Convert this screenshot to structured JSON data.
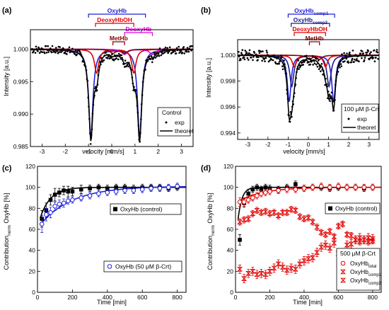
{
  "chart_data": [
    {
      "panel": "(a)",
      "type": "line",
      "xlabel": "velocity [mm/s]",
      "ylabel": "Intensity [a.u.]",
      "xlim": [
        -3.5,
        3.5
      ],
      "ylim": [
        0.985,
        1.003
      ],
      "xticks": [
        -3,
        -2,
        -1,
        0,
        1,
        2,
        3
      ],
      "yticks": [
        0.985,
        0.99,
        0.995,
        1.0
      ],
      "ytick_labels": [
        "0.985",
        "0.990",
        "0.995",
        "1.000"
      ],
      "brackets": [
        {
          "label": "OxyHb",
          "color": "#1f1fd6",
          "x1": -1.0,
          "x2": 1.45
        },
        {
          "label": "DeoxyHbOH",
          "color": "#e00000",
          "x1": -0.7,
          "x2": 0.95
        },
        {
          "label": "DeoxyHb",
          "color": "#e000e0",
          "x1": 0.55,
          "x2": 1.75
        },
        {
          "label": "MetHb",
          "color": "#800000",
          "x1": 0.05,
          "x2": 0.55
        }
      ],
      "components": [
        {
          "name": "OxyHb",
          "color": "#1f1fd6",
          "lines": [
            {
              "pos": -0.9,
              "depth": 0.0135,
              "width": 0.22
            },
            {
              "pos": 1.2,
              "depth": 0.0135,
              "width": 0.22
            }
          ]
        },
        {
          "name": "DeoxyHbOH",
          "color": "#e00000",
          "lines": [
            {
              "pos": -0.65,
              "depth": 0.0037,
              "width": 0.22
            },
            {
              "pos": 0.95,
              "depth": 0.0037,
              "width": 0.22
            }
          ]
        },
        {
          "name": "DeoxyHb",
          "color": "#e000e0",
          "lines": [
            {
              "pos": 0.55,
              "depth": 0.0008,
              "width": 0.3
            },
            {
              "pos": 1.75,
              "depth": 0.0008,
              "width": 0.3
            }
          ]
        },
        {
          "name": "MetHb",
          "color": "#800000",
          "lines": [
            {
              "pos": 0.05,
              "depth": 0.0006,
              "width": 0.3
            },
            {
              "pos": 0.55,
              "depth": 0.0006,
              "width": 0.3
            }
          ]
        }
      ],
      "noise": 0.0006,
      "legend": {
        "title": "Control",
        "exp": "exp",
        "theor": "theoret",
        "position": "bottom-right"
      }
    },
    {
      "panel": "(b)",
      "type": "line",
      "xlabel": "velocity [mm/s]",
      "ylabel": "Intensity [a.u.]",
      "xlim": [
        -3.5,
        3.5
      ],
      "ylim": [
        0.9935,
        1.0012
      ],
      "xticks": [
        -3,
        -2,
        -1,
        0,
        1,
        2,
        3
      ],
      "yticks": [
        0.994,
        0.996,
        0.998,
        1.0
      ],
      "ytick_labels": [
        "0.994",
        "0.996",
        "0.998",
        "1.000"
      ],
      "brackets": [
        {
          "label": "OxyHb",
          "sub": "comp1",
          "color": "#1f1fd6",
          "x1": -1.0,
          "x2": 1.3
        },
        {
          "label": "OxyHb",
          "sub": "comp2",
          "color": "#1a1a8f",
          "x1": -0.85,
          "x2": 1.05
        },
        {
          "label": "DeoxyHbOH",
          "color": "#e00000",
          "x1": -0.7,
          "x2": 0.85
        },
        {
          "label": "MetHb",
          "color": "#800000",
          "x1": 0.05,
          "x2": 0.55
        }
      ],
      "components": [
        {
          "name": "OxyHb comp1",
          "color": "#1f1fd6",
          "lines": [
            {
              "pos": -0.95,
              "depth": 0.0036,
              "width": 0.22
            },
            {
              "pos": 1.25,
              "depth": 0.0036,
              "width": 0.22
            }
          ]
        },
        {
          "name": "OxyHb comp2",
          "color": "#1a1a8f",
          "lines": [
            {
              "pos": -0.82,
              "depth": 0.0024,
              "width": 0.24
            },
            {
              "pos": 1.02,
              "depth": 0.0024,
              "width": 0.24
            }
          ]
        },
        {
          "name": "DeoxyHbOH",
          "color": "#e00000",
          "lines": [
            {
              "pos": -0.7,
              "depth": 0.0009,
              "width": 0.24
            },
            {
              "pos": 0.85,
              "depth": 0.0009,
              "width": 0.24
            }
          ]
        },
        {
          "name": "MetHb",
          "color": "#800000",
          "lines": [
            {
              "pos": 0.05,
              "depth": 0.0003,
              "width": 0.3
            },
            {
              "pos": 0.55,
              "depth": 0.0003,
              "width": 0.3
            }
          ]
        }
      ],
      "noise": 0.00045,
      "legend": {
        "title": "100 μM β-Crt",
        "exp": "exp",
        "theor": "theoret",
        "position": "bottom-right"
      }
    },
    {
      "panel": "(c)",
      "type": "scatter",
      "xlabel": "Time [min]",
      "ylabel_main": "Contribution",
      "ylabel_sub": "norm",
      "ylabel_rest": " OxyHb [%]",
      "xlim": [
        0,
        850
      ],
      "ylim": [
        0,
        120
      ],
      "xticks": [
        0,
        200,
        400,
        600,
        800
      ],
      "yticks": [
        0,
        20,
        40,
        60,
        80,
        100,
        120
      ],
      "series": [
        {
          "name": "OxyHb (control)",
          "color": "#000000",
          "marker": "square-filled",
          "x": [
            25,
            50,
            75,
            100,
            125,
            150,
            175,
            200,
            250,
            300,
            350,
            400,
            450,
            500,
            550,
            600,
            650,
            700,
            750,
            800
          ],
          "y": [
            70,
            78,
            88,
            93,
            95,
            97,
            96,
            96,
            98,
            99,
            100,
            99,
            100,
            100,
            99,
            100,
            100,
            100,
            99,
            100
          ],
          "err": [
            8,
            7,
            5,
            6,
            4,
            4,
            5,
            4,
            4,
            3,
            3,
            3,
            3,
            3,
            3,
            3,
            3,
            3,
            3,
            3
          ],
          "fit": {
            "a": 100,
            "b": 38,
            "k": 0.017
          }
        },
        {
          "name": "OxyHb (50 μM β-Crt)",
          "color": "#1f1fd6",
          "marker": "circle-open",
          "x": [
            25,
            50,
            75,
            100,
            125,
            150,
            175,
            200,
            250,
            300,
            350,
            400,
            450,
            500,
            550,
            600,
            650,
            700,
            750,
            800
          ],
          "y": [
            65,
            74,
            76,
            82,
            84,
            85,
            87,
            88,
            90,
            92,
            94,
            95,
            96,
            97,
            97,
            98,
            99,
            99,
            100,
            101
          ],
          "err": [
            8,
            6,
            5,
            4,
            4,
            4,
            3,
            3,
            3,
            3,
            3,
            3,
            3,
            3,
            3,
            3,
            3,
            3,
            3,
            3
          ],
          "fit": {
            "a": 101,
            "b": 40,
            "k": 0.0055
          }
        }
      ]
    },
    {
      "panel": "(d)",
      "type": "scatter",
      "xlabel": "Time [min]",
      "ylabel_main": "Contribution",
      "ylabel_sub": "norm",
      "ylabel_rest": " OxyHb [%]",
      "xlim": [
        0,
        850
      ],
      "ylim": [
        0,
        120
      ],
      "xticks": [
        0,
        200,
        400,
        600,
        800
      ],
      "yticks": [
        0,
        20,
        40,
        60,
        80,
        100,
        120
      ],
      "legend_title": "500 μM β-Crt",
      "series": [
        {
          "name": "OxyHb (control)",
          "color": "#000000",
          "marker": "square-filled",
          "x": [
            25,
            50,
            75,
            100,
            125,
            150,
            175,
            200,
            250,
            300,
            350,
            400,
            450,
            500,
            550,
            600,
            650,
            700,
            750,
            800
          ],
          "y": [
            50,
            85,
            94,
            98,
            100,
            98,
            100,
            99,
            98,
            100,
            103,
            99,
            100,
            100,
            99,
            100,
            100,
            100,
            99,
            100
          ],
          "err": [
            5,
            4,
            4,
            3,
            3,
            3,
            3,
            3,
            3,
            3,
            3,
            3,
            3,
            3,
            3,
            3,
            3,
            3,
            3,
            3
          ],
          "fit": {
            "a": 100,
            "b": 60,
            "k": 0.045
          }
        },
        {
          "name": "OxyHb",
          "sub": "total",
          "color": "#e00000",
          "marker": "circle-open",
          "x": [
            25,
            50,
            75,
            100,
            125,
            150,
            175,
            200,
            250,
            300,
            350,
            400,
            450,
            500,
            550,
            600,
            650,
            700,
            750,
            800
          ],
          "y": [
            86,
            86,
            88,
            90,
            92,
            94,
            95,
            96,
            97,
            98,
            98,
            99,
            100,
            101,
            100,
            101,
            100,
            100,
            100,
            100
          ],
          "err": [
            4,
            4,
            3,
            3,
            3,
            3,
            3,
            3,
            3,
            3,
            3,
            3,
            3,
            3,
            3,
            3,
            3,
            3,
            3,
            3
          ],
          "fit": {
            "a": 100,
            "b": 15,
            "k": 0.007
          }
        },
        {
          "name": "OxyHb",
          "sub": "comp1",
          "color": "#e00000",
          "marker": "bowtie-top",
          "x": [
            25,
            50,
            75,
            100,
            125,
            150,
            175,
            200,
            225,
            250,
            275,
            300,
            325,
            350,
            375,
            400,
            425,
            450,
            475,
            500,
            525,
            550,
            575,
            600,
            625,
            650,
            675,
            700,
            725,
            750,
            775,
            800
          ],
          "y": [
            67,
            69,
            70,
            75,
            78,
            76,
            77,
            75,
            76,
            73,
            76,
            76,
            79,
            78,
            72,
            70,
            71,
            67,
            62,
            57,
            55,
            58,
            53,
            63,
            65,
            55,
            54,
            50,
            48,
            50,
            48,
            49
          ],
          "err": [
            3,
            3,
            3,
            3,
            3,
            3,
            3,
            3,
            3,
            3,
            3,
            3,
            3,
            3,
            3,
            3,
            3,
            3,
            3,
            3,
            3,
            3,
            3,
            3,
            3,
            3,
            3,
            3,
            3,
            3,
            3,
            3
          ]
        },
        {
          "name": "OxyHb",
          "sub": "comp2",
          "color": "#e00000",
          "marker": "bowtie-bottom",
          "x": [
            25,
            50,
            75,
            100,
            125,
            150,
            175,
            200,
            225,
            250,
            275,
            300,
            325,
            350,
            375,
            400,
            425,
            450,
            475,
            500,
            525,
            550,
            575,
            600,
            625,
            650,
            675,
            700,
            725,
            750,
            775,
            800
          ],
          "y": [
            22,
            13,
            18,
            20,
            17,
            18,
            17,
            20,
            23,
            27,
            24,
            21,
            23,
            22,
            27,
            30,
            32,
            33,
            38,
            43,
            45,
            42,
            47,
            37,
            35,
            45,
            46,
            50,
            52,
            50,
            52,
            51
          ],
          "err": [
            4,
            4,
            4,
            4,
            4,
            4,
            4,
            4,
            4,
            4,
            4,
            4,
            4,
            4,
            4,
            4,
            4,
            4,
            4,
            4,
            4,
            4,
            4,
            4,
            4,
            4,
            4,
            4,
            4,
            4,
            4,
            4
          ]
        }
      ]
    }
  ]
}
